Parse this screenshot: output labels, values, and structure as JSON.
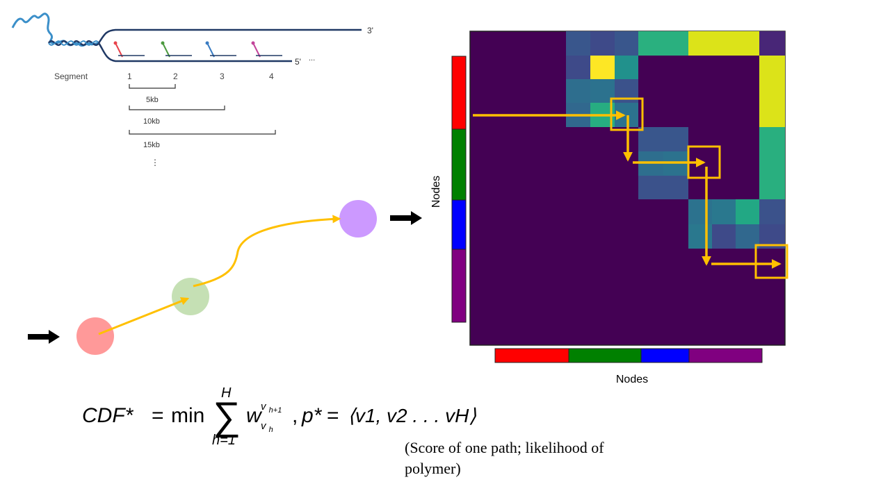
{
  "colors": {
    "matrix_background": "#440154",
    "path_color": "#FFC000",
    "strand_color": "#1F3864",
    "node_red": "#FF0000",
    "node_green": "#008000",
    "node_blue": "#0000FF",
    "node_purple": "#800080",
    "graph_node_1": "#FF9999",
    "graph_node_2": "#C5E0B4",
    "graph_node_3": "#CC99FF"
  },
  "strand": {
    "label_3prime": "3'",
    "label_5prime": "5'",
    "ellipsis": "...",
    "segment_label": "Segment",
    "segment_numbers": [
      "1",
      "2",
      "3",
      "4"
    ],
    "probe_colors": [
      "#E8434B",
      "#4C9A3F",
      "#3A7CC2",
      "#C2449A"
    ],
    "span_labels": [
      "5kb",
      "10kb",
      "15kb"
    ],
    "more": "⋮"
  },
  "matrix": {
    "y_label": "Nodes",
    "x_label": "Nodes",
    "bar_colors": [
      "#FF0000",
      "#008000",
      "#0000FF",
      "#800080"
    ]
  },
  "formula": {
    "lhs": "CDF*",
    "equals": "=",
    "operator": "min",
    "sum_upper": "H",
    "sum_lower": "h=1",
    "weight": "w",
    "weight_sub": "v",
    "weight_sub_sub": "h",
    "weight_sup": "v",
    "weight_sup_sub": "h+1",
    "path_lhs": "p*",
    "path_rhs": "⟨v1, v2 . . . vH⟩"
  },
  "note": {
    "text": "(Score of one path; likelihood of polymer)"
  }
}
